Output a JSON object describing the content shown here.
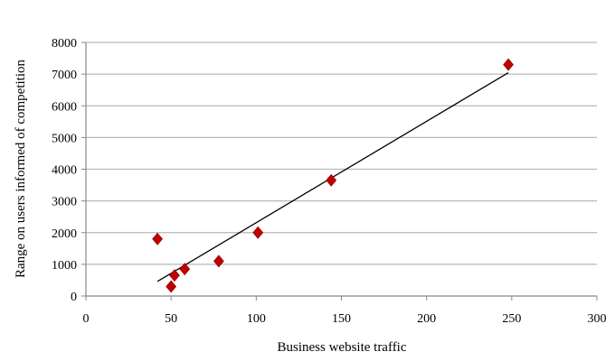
{
  "chart_data": {
    "type": "scatter",
    "title": "",
    "xlabel": "Business website traffic",
    "ylabel": "Range on users informed of competition",
    "xlim": [
      0,
      300
    ],
    "ylim": [
      0,
      8000
    ],
    "x_ticks": [
      0,
      50,
      100,
      150,
      200,
      250,
      300
    ],
    "y_ticks": [
      0,
      1000,
      2000,
      3000,
      4000,
      5000,
      6000,
      7000,
      8000
    ],
    "grid": "horizontal",
    "legend": "none",
    "marker": "diamond",
    "marker_color": "#c00000",
    "line_color": "#000000",
    "grid_color": "#b8b8b8",
    "series": [
      {
        "points": [
          {
            "x": 42,
            "y": 1800
          },
          {
            "x": 50,
            "y": 300
          },
          {
            "x": 52,
            "y": 650
          },
          {
            "x": 58,
            "y": 850
          },
          {
            "x": 78,
            "y": 1100
          },
          {
            "x": 101,
            "y": 2000
          },
          {
            "x": 144,
            "y": 3650
          },
          {
            "x": 248,
            "y": 7300
          }
        ]
      }
    ],
    "trendline": {
      "type": "linear",
      "x_range": [
        42,
        248
      ]
    }
  }
}
